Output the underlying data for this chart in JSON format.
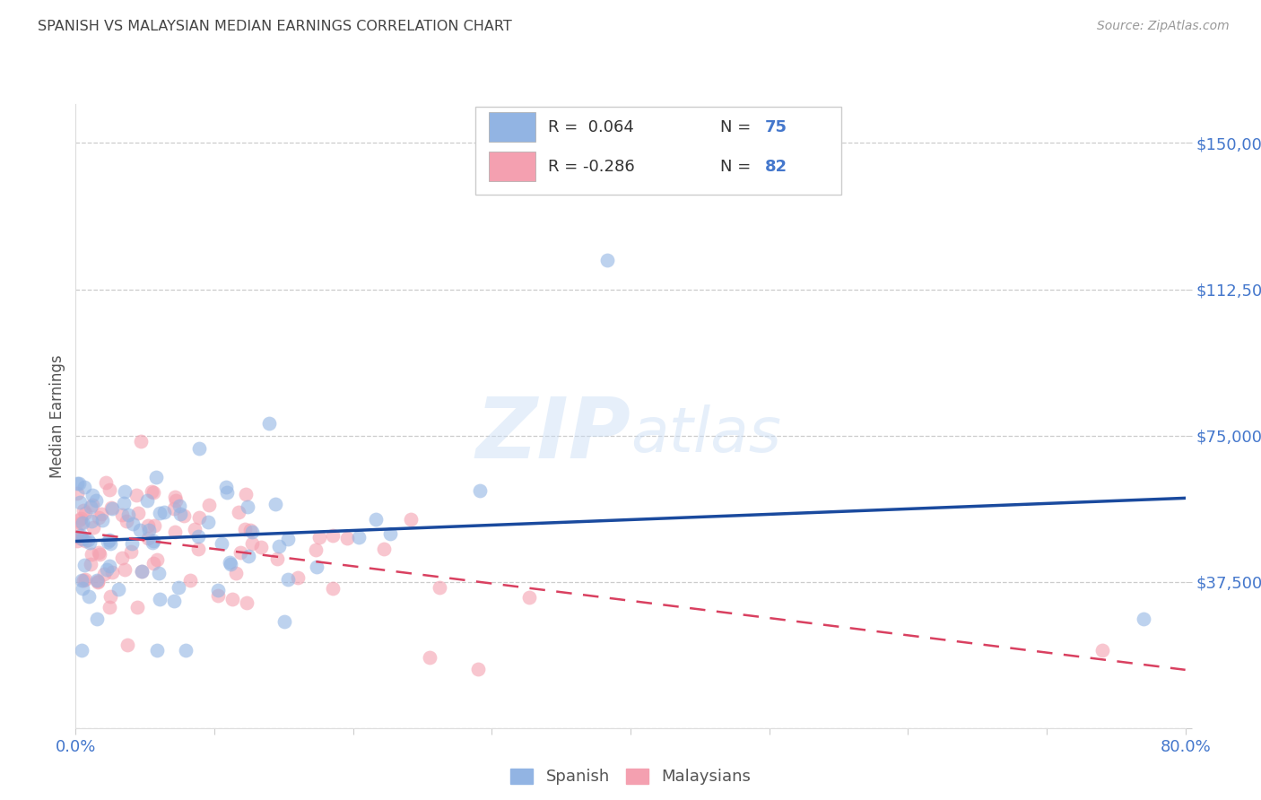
{
  "title": "SPANISH VS MALAYSIAN MEDIAN EARNINGS CORRELATION CHART",
  "source": "Source: ZipAtlas.com",
  "ylabel": "Median Earnings",
  "watermark": "ZIPatlas",
  "xlim": [
    0.0,
    0.8
  ],
  "ylim": [
    0,
    160000
  ],
  "ytick_vals": [
    0,
    37500,
    75000,
    112500,
    150000
  ],
  "ytick_labels": [
    "",
    "$37,500",
    "$75,000",
    "$112,500",
    "$150,000"
  ],
  "xtick_vals": [
    0.0,
    0.1,
    0.2,
    0.3,
    0.4,
    0.5,
    0.6,
    0.7,
    0.8
  ],
  "xtick_labels": [
    "0.0%",
    "",
    "",
    "",
    "",
    "",
    "",
    "",
    "80.0%"
  ],
  "grid_color": "#cccccc",
  "background_color": "#ffffff",
  "spanish_color": "#92b4e3",
  "malaysian_color": "#f4a0b0",
  "spanish_line_color": "#1a4a9e",
  "malaysian_line_color": "#d94060",
  "axis_label_color": "#4477cc",
  "title_color": "#444444",
  "legend_N_color": "#4477cc",
  "spanish_R": "0.064",
  "spanish_N": "75",
  "malaysian_R": "-0.286",
  "malaysian_N": "82",
  "legend_label_spanish": "Spanish",
  "legend_label_malaysian": "Malaysians",
  "spanish_seed": 17,
  "malaysian_seed": 99,
  "spanish_line_y0": 46000,
  "spanish_line_y1": 53000,
  "malaysian_line_y0": 52000,
  "malaysian_line_y1": 10000
}
